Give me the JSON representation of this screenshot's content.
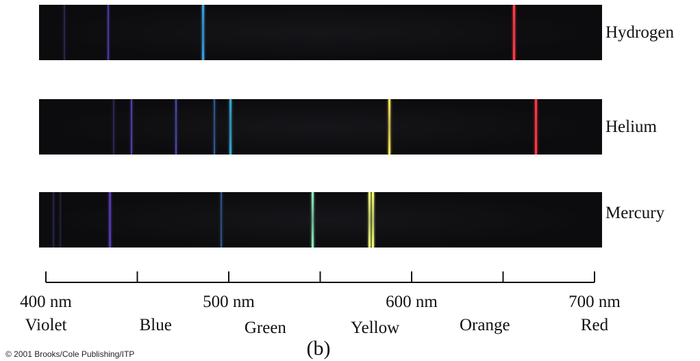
{
  "spectra": [
    {
      "name": "Hydrogen",
      "lines": [
        {
          "nm": 410,
          "color": "#4a3c8c",
          "strength": 0.5
        },
        {
          "nm": 434,
          "color": "#5a3fc0",
          "strength": 0.85
        },
        {
          "nm": 486,
          "color": "#3aa0e0",
          "strength": 1.0
        },
        {
          "nm": 656,
          "color": "#ff3a46",
          "strength": 1.0
        }
      ]
    },
    {
      "name": "Helium",
      "lines": [
        {
          "nm": 437,
          "color": "#4a3f9a",
          "strength": 0.5
        },
        {
          "nm": 447,
          "color": "#5a48c8",
          "strength": 0.85
        },
        {
          "nm": 471,
          "color": "#5a58d8",
          "strength": 0.8
        },
        {
          "nm": 492,
          "color": "#3e7ad0",
          "strength": 0.7
        },
        {
          "nm": 501,
          "color": "#3ab0d8",
          "strength": 0.95
        },
        {
          "nm": 588,
          "color": "#ffe65a",
          "strength": 1.0
        },
        {
          "nm": 668,
          "color": "#ff3545",
          "strength": 1.0
        }
      ]
    },
    {
      "name": "Mercury",
      "lines": [
        {
          "nm": 404,
          "color": "#3d3a7a",
          "strength": 0.5
        },
        {
          "nm": 408,
          "color": "#3d3a7a",
          "strength": 0.4
        },
        {
          "nm": 435,
          "color": "#5a3fc0",
          "strength": 0.9
        },
        {
          "nm": 496,
          "color": "#3a78c8",
          "strength": 0.7
        },
        {
          "nm": 546,
          "color": "#8ff0c0",
          "strength": 1.0
        },
        {
          "nm": 577,
          "color": "#f4ff7a",
          "strength": 1.0
        },
        {
          "nm": 579,
          "color": "#f4ff7a",
          "strength": 1.0
        }
      ]
    }
  ],
  "axis": {
    "range_nm": [
      400,
      700
    ],
    "major_ticks_nm": [
      400,
      450,
      500,
      550,
      600,
      650,
      700
    ],
    "tick_labels": [
      {
        "nm": 400,
        "text": "400 nm"
      },
      {
        "nm": 500,
        "text": "500 nm"
      },
      {
        "nm": 600,
        "text": "600 nm"
      },
      {
        "nm": 700,
        "text": "700 nm"
      }
    ]
  },
  "color_bands": [
    {
      "nm": 400,
      "text": "Violet"
    },
    {
      "nm": 460,
      "text": "Blue"
    },
    {
      "nm": 520,
      "text": "Green"
    },
    {
      "nm": 580,
      "text": "Yellow"
    },
    {
      "nm": 640,
      "text": "Orange"
    },
    {
      "nm": 700,
      "text": "Red"
    }
  ],
  "panel_label": "(b)",
  "copyright": "© 2001 Brooks/Cole Publishing/ITP"
}
